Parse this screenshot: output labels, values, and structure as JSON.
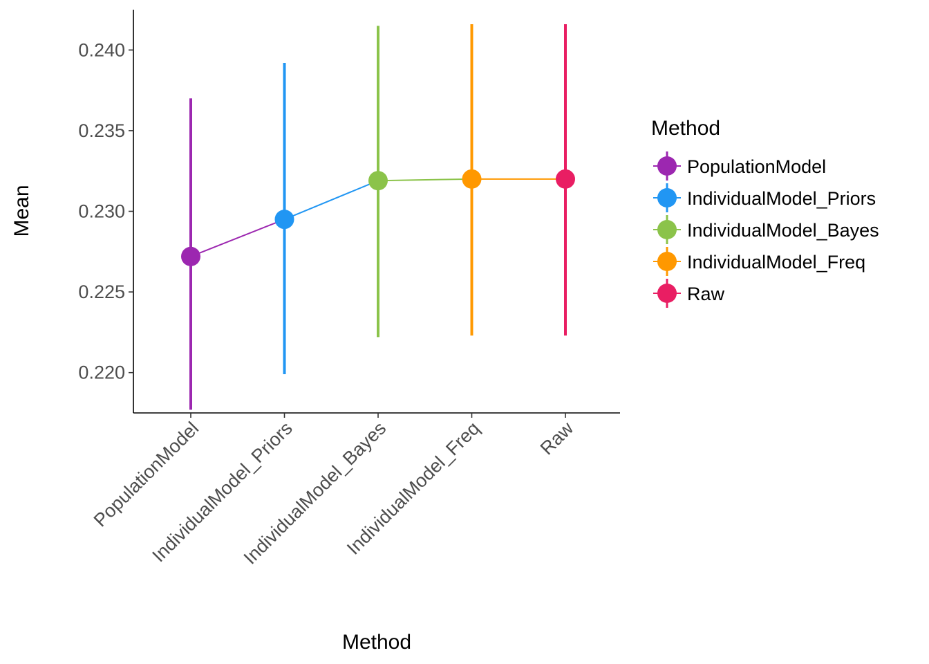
{
  "chart_data": {
    "type": "line",
    "xlabel": "Method",
    "ylabel": "Mean",
    "ylim": [
      0.2175,
      0.2425
    ],
    "yticks": [
      "0.220",
      "0.225",
      "0.230",
      "0.235",
      "0.240"
    ],
    "ytick_values": [
      0.22,
      0.225,
      0.23,
      0.235,
      0.24
    ],
    "grid": false,
    "legend_position": "right",
    "legend_title": "Method",
    "categories": [
      "PopulationModel",
      "IndividualModel_Priors",
      "IndividualModel_Bayes",
      "IndividualModel_Freq",
      "Raw"
    ],
    "series": [
      {
        "name": "PopulationModel",
        "mean": 0.2272,
        "lower": 0.2177,
        "upper": 0.237,
        "color": "#9C27B0"
      },
      {
        "name": "IndividualModel_Priors",
        "mean": 0.2295,
        "lower": 0.2199,
        "upper": 0.2392,
        "color": "#2196F3"
      },
      {
        "name": "IndividualModel_Bayes",
        "mean": 0.2319,
        "lower": 0.2222,
        "upper": 0.2415,
        "color": "#8BC34A"
      },
      {
        "name": "IndividualModel_Freq",
        "mean": 0.232,
        "lower": 0.2223,
        "upper": 0.2416,
        "color": "#FF9800"
      },
      {
        "name": "Raw",
        "mean": 0.232,
        "lower": 0.2223,
        "upper": 0.2416,
        "color": "#E91E63"
      }
    ]
  }
}
